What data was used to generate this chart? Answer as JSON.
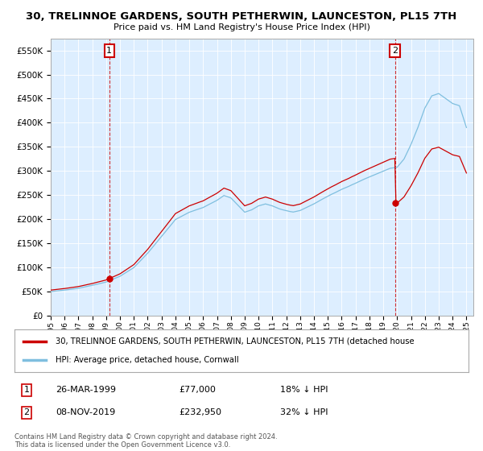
{
  "title_line1": "30, TRELINNOE GARDENS, SOUTH PETHERWIN, LAUNCESTON, PL15 7TH",
  "title_line2": "Price paid vs. HM Land Registry's House Price Index (HPI)",
  "legend_label1": "30, TRELINNOE GARDENS, SOUTH PETHERWIN, LAUNCESTON, PL15 7TH (detached house",
  "legend_label2": "HPI: Average price, detached house, Cornwall",
  "annotation1_date": "26-MAR-1999",
  "annotation1_price": "£77,000",
  "annotation1_hpi": "18% ↓ HPI",
  "annotation2_date": "08-NOV-2019",
  "annotation2_price": "£232,950",
  "annotation2_hpi": "32% ↓ HPI",
  "footer": "Contains HM Land Registry data © Crown copyright and database right 2024.\nThis data is licensed under the Open Government Licence v3.0.",
  "sale1_year": 1999.23,
  "sale1_value": 77000,
  "sale2_year": 2019.85,
  "sale2_value": 232950,
  "hpi_color": "#7fbfdf",
  "price_color": "#cc0000",
  "annotation_box_color": "#cc0000",
  "ylim_max": 575000,
  "ylim_min": 0,
  "xlim_min": 1995.0,
  "xlim_max": 2025.5,
  "background_color": "#ffffff",
  "plot_bg_color": "#ddeeff",
  "grid_color": "#ffffff"
}
